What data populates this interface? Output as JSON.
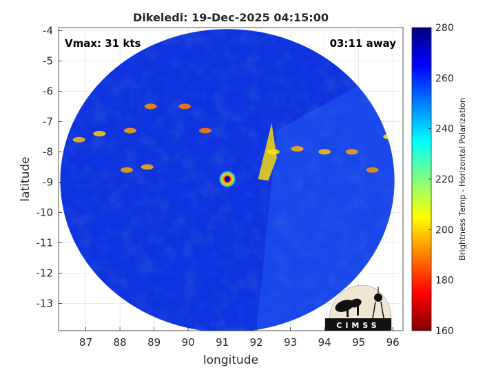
{
  "chart_data": {
    "type": "heatmap",
    "title": "Dikeledi: 19-Dec-2025 04:15:00",
    "xlabel": "longitude",
    "ylabel": "latitude",
    "xlim": [
      86.2,
      96.3
    ],
    "ylim": [
      -13.9,
      -3.9
    ],
    "x_ticks": [
      87,
      88,
      89,
      90,
      91,
      92,
      93,
      94,
      95,
      96
    ],
    "y_ticks": [
      -4,
      -5,
      -6,
      -7,
      -8,
      -9,
      -10,
      -11,
      -12,
      -13
    ],
    "grid": true,
    "annotations": {
      "left": "Vmax: 31 kts",
      "right": "03:11 away"
    },
    "colorbar": {
      "label": "Brightness Temp - Horizontal Polarization",
      "min": 160,
      "max": 280,
      "ticks": [
        280,
        260,
        240,
        220,
        200,
        180,
        160
      ],
      "colormap": "jet"
    },
    "swath": {
      "center_lon": 91.15,
      "center_lat": -8.95,
      "radius_lon": 4.9,
      "radius_lat": 5.0
    },
    "cold_core": {
      "lon": 91.15,
      "lat": -8.9,
      "min_temp": 170
    },
    "cloud_bands": [
      {
        "lon": 86.8,
        "lat": -7.6,
        "temp": 243
      },
      {
        "lon": 87.4,
        "lat": -7.4,
        "temp": 240
      },
      {
        "lon": 88.3,
        "lat": -7.3,
        "temp": 246
      },
      {
        "lon": 88.9,
        "lat": -6.5,
        "temp": 248
      },
      {
        "lon": 89.9,
        "lat": -6.5,
        "temp": 250
      },
      {
        "lon": 88.8,
        "lat": -8.5,
        "temp": 244
      },
      {
        "lon": 88.2,
        "lat": -8.6,
        "temp": 246
      },
      {
        "lon": 90.5,
        "lat": -7.3,
        "temp": 250
      },
      {
        "lon": 92.5,
        "lat": -8.0,
        "temp": 238
      },
      {
        "lon": 93.2,
        "lat": -7.9,
        "temp": 244
      },
      {
        "lon": 94.0,
        "lat": -8.0,
        "temp": 242
      },
      {
        "lon": 94.8,
        "lat": -8.0,
        "temp": 246
      },
      {
        "lon": 95.9,
        "lat": -7.5,
        "temp": 236
      },
      {
        "lon": 95.4,
        "lat": -8.6,
        "temp": 248
      }
    ],
    "colors": {
      "cold_end": "#7f0000",
      "warm_end": "#00007f",
      "background_field": "#0f33e0"
    }
  },
  "logo": {
    "text": "CIMSS"
  }
}
